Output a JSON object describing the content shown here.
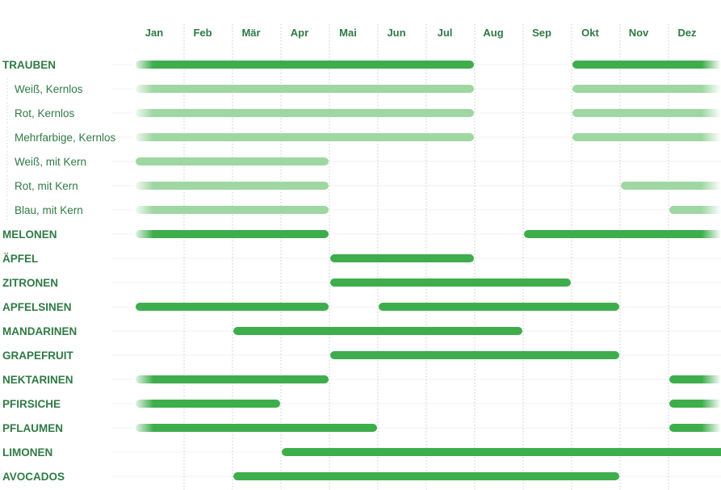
{
  "chart_data": {
    "type": "gantt",
    "months": [
      "Jan",
      "Feb",
      "Mär",
      "Apr",
      "Mai",
      "Jun",
      "Jul",
      "Aug",
      "Sep",
      "Okt",
      "Nov",
      "Dez"
    ],
    "rows": [
      {
        "label": "TRAUBEN",
        "level": 0,
        "ranges": [
          [
            1,
            7
          ],
          [
            10,
            12
          ]
        ],
        "fade_start": true,
        "fade_end": true
      },
      {
        "label": "Weiß, Kernlos",
        "level": 1,
        "ranges": [
          [
            1,
            7
          ],
          [
            10,
            12
          ]
        ],
        "fade_start": true,
        "fade_end": true
      },
      {
        "label": "Rot, Kernlos",
        "level": 1,
        "ranges": [
          [
            1,
            7
          ],
          [
            10,
            12
          ]
        ],
        "fade_start": true,
        "fade_end": true
      },
      {
        "label": "Mehrfarbige, Kernlos",
        "level": 1,
        "ranges": [
          [
            1,
            7
          ],
          [
            10,
            12
          ]
        ],
        "fade_start": true,
        "fade_end": true
      },
      {
        "label": "Weiß, mit Kern",
        "level": 1,
        "ranges": [
          [
            1,
            4
          ]
        ],
        "fade_start": false,
        "fade_end": false
      },
      {
        "label": "Rot,  mit Kern",
        "level": 1,
        "ranges": [
          [
            1,
            4
          ],
          [
            11,
            12
          ]
        ],
        "fade_start": true,
        "fade_end": true
      },
      {
        "label": "Blau, mit Kern",
        "level": 1,
        "ranges": [
          [
            1,
            4
          ],
          [
            12,
            12
          ]
        ],
        "fade_start": true,
        "fade_end": true
      },
      {
        "label": "MELONEN",
        "level": 0,
        "ranges": [
          [
            1,
            4
          ],
          [
            9,
            12
          ]
        ],
        "fade_start": true,
        "fade_end": true
      },
      {
        "label": "ÄPFEL",
        "level": 0,
        "ranges": [
          [
            5,
            7
          ]
        ],
        "fade_start": false,
        "fade_end": false
      },
      {
        "label": "ZITRONEN",
        "level": 0,
        "ranges": [
          [
            5,
            9
          ]
        ],
        "fade_start": false,
        "fade_end": false
      },
      {
        "label": "APFELSINEN",
        "level": 0,
        "ranges": [
          [
            1,
            4
          ],
          [
            6,
            10
          ]
        ],
        "fade_start": false,
        "fade_end": false
      },
      {
        "label": "MANDARINEN",
        "level": 0,
        "ranges": [
          [
            3,
            8
          ]
        ],
        "fade_start": false,
        "fade_end": false
      },
      {
        "label": "GRAPEFRUIT",
        "level": 0,
        "ranges": [
          [
            5,
            10
          ]
        ],
        "fade_start": false,
        "fade_end": false
      },
      {
        "label": "NEKTARINEN",
        "level": 0,
        "ranges": [
          [
            1,
            4
          ],
          [
            12,
            12
          ]
        ],
        "fade_start": true,
        "fade_end": true
      },
      {
        "label": "PFIRSICHE",
        "level": 0,
        "ranges": [
          [
            1,
            3
          ],
          [
            12,
            12
          ]
        ],
        "fade_start": true,
        "fade_end": true
      },
      {
        "label": "PFLAUMEN",
        "level": 0,
        "ranges": [
          [
            1,
            5
          ],
          [
            12,
            12
          ]
        ],
        "fade_start": true,
        "fade_end": true
      },
      {
        "label": "LIMONEN",
        "level": 0,
        "ranges": [
          [
            4,
            12
          ]
        ],
        "fade_start": false,
        "fade_end": false
      },
      {
        "label": "AVOCADOS",
        "level": 0,
        "ranges": [
          [
            3,
            10
          ]
        ],
        "fade_start": false,
        "fade_end": false
      }
    ],
    "grid": true,
    "colors": {
      "main_bar": "#3ead4c",
      "sub_bar": "#9ed7a2",
      "text": "#2f7a45",
      "row_line": "#f1f1f1",
      "month_line": "#c9c9c9"
    }
  }
}
